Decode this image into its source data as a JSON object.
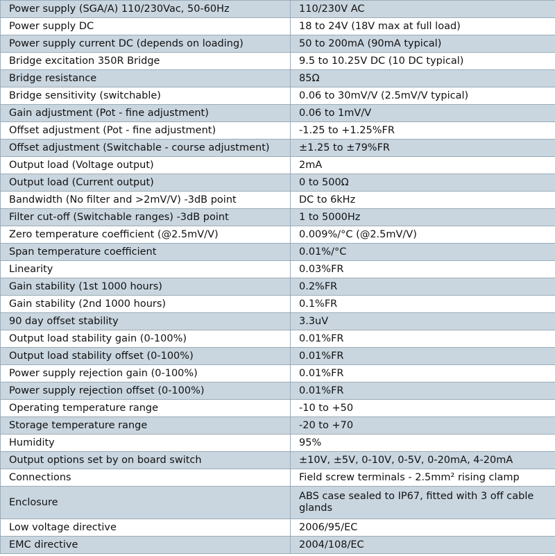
{
  "rows": [
    {
      "param": "Power supply (SGA/A) 110/230Vac, 50-60Hz",
      "value": "110/230V AC"
    },
    {
      "param": "Power supply DC",
      "value": "18 to 24V (18V max at full load)"
    },
    {
      "param": "Power supply current DC (depends on loading)",
      "value": "50 to 200mA (90mA typical)"
    },
    {
      "param": "Bridge excitation 350R Bridge",
      "value": "9.5 to 10.25V DC (10 DC typical)"
    },
    {
      "param": "Bridge resistance",
      "value": "85Ω"
    },
    {
      "param": "Bridge sensitivity (switchable)",
      "value": "0.06 to 30mV/V (2.5mV/V typical)"
    },
    {
      "param": "Gain adjustment (Pot - fine adjustment)",
      "value": "0.06 to 1mV/V"
    },
    {
      "param": "Offset adjustment (Pot - fine adjustment)",
      "value": "-1.25 to +1.25%FR"
    },
    {
      "param": "Offset adjustment (Switchable - course adjustment)",
      "value": "±1.25 to ±79%FR"
    },
    {
      "param": "Output load (Voltage output)",
      "value": "2mA"
    },
    {
      "param": "Output load (Current output)",
      "value": "0 to 500Ω"
    },
    {
      "param": "Bandwidth (No filter and >2mV/V) -3dB point",
      "value": "DC to 6kHz"
    },
    {
      "param": "Filter cut-off (Switchable ranges) -3dB point",
      "value": "1 to 5000Hz"
    },
    {
      "param": "Zero temperature coefficient (@2.5mV/V)",
      "value": "0.009%/°C (@2.5mV/V)"
    },
    {
      "param": "Span temperature coefficient",
      "value": "0.01%/°C"
    },
    {
      "param": "Linearity",
      "value": "0.03%FR"
    },
    {
      "param": "Gain stability (1st 1000 hours)",
      "value": "0.2%FR"
    },
    {
      "param": "Gain stability (2nd 1000 hours)",
      "value": "0.1%FR"
    },
    {
      "param": "90 day offset stability",
      "value": "3.3uV"
    },
    {
      "param": "Output load stability gain (0-100%)",
      "value": "0.01%FR"
    },
    {
      "param": "Output load stability offset (0-100%)",
      "value": "0.01%FR"
    },
    {
      "param": "Power supply rejection gain (0-100%)",
      "value": "0.01%FR"
    },
    {
      "param": "Power supply rejection offset (0-100%)",
      "value": "0.01%FR"
    },
    {
      "param": "Operating temperature range",
      "value": "-10 to +50"
    },
    {
      "param": "Storage temperature range",
      "value": "-20 to +70"
    },
    {
      "param": "Humidity",
      "value": "95%"
    },
    {
      "param": "Output options set by on board switch",
      "value": "±10V, ±5V, 0-10V, 0-5V, 0-20mA, 4-20mA"
    },
    {
      "param": "Connections",
      "value": "Field screw terminals - 2.5mm² rising clamp"
    },
    {
      "param": "Enclosure",
      "value": "ABS case sealed to IP67, fitted with 3 off cable glands"
    },
    {
      "param": "Low voltage directive",
      "value": "2006/95/EC"
    },
    {
      "param": "EMC directive",
      "value": "2004/108/EC"
    }
  ]
}
